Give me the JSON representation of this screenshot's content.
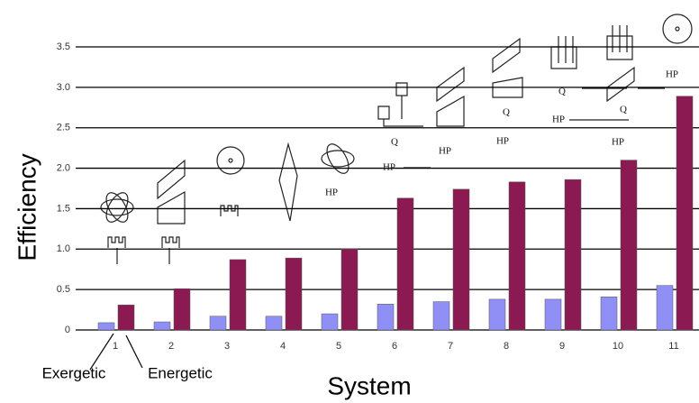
{
  "chart_data": {
    "type": "bar",
    "x_label": "System",
    "y_label": "Efficiency",
    "categories": [
      "1",
      "2",
      "3",
      "4",
      "5",
      "6",
      "7",
      "8",
      "9",
      "10",
      "11"
    ],
    "series": [
      {
        "name": "Exergetic",
        "color": "#8f8ff5",
        "values": [
          0.09,
          0.1,
          0.17,
          0.17,
          0.2,
          0.32,
          0.35,
          0.38,
          0.38,
          0.41,
          0.55
        ]
      },
      {
        "name": "Energetic",
        "color": "#8b1a52",
        "values": [
          0.31,
          0.51,
          0.87,
          0.89,
          1.0,
          1.63,
          1.74,
          1.83,
          1.86,
          2.1,
          2.89
        ]
      }
    ],
    "ylim": [
      0,
      3.5
    ],
    "yticks": [
      0,
      0.5,
      {
        "value": 1,
        "label": "1.0"
      },
      1.5,
      {
        "value": 2,
        "label": "2.0"
      },
      2.5,
      {
        "value": 3,
        "label": "3.0"
      },
      3.5
    ],
    "grid": true,
    "icon_labels": [
      "HP",
      "Q",
      "HP",
      "HP",
      "Q",
      "HP",
      "Q",
      "HP",
      "Q",
      "HP",
      "HP"
    ]
  }
}
